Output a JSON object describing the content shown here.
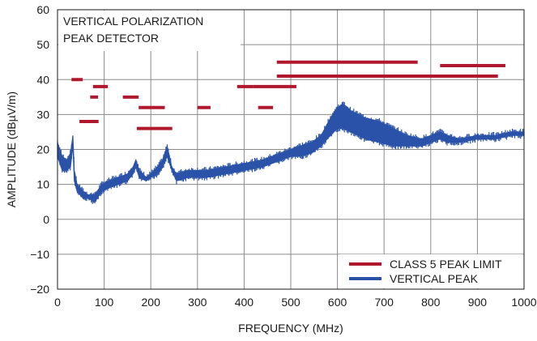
{
  "chart_data": {
    "type": "line",
    "title": "",
    "xlabel": "FREQUENCY (MHz)",
    "ylabel": "AMPLITUDE (dBµV/m)",
    "xlim": [
      0,
      1000
    ],
    "ylim": [
      -20,
      60
    ],
    "xticks": [
      0,
      100,
      200,
      300,
      400,
      500,
      600,
      700,
      800,
      900,
      1000
    ],
    "yticks": [
      -20,
      -10,
      0,
      10,
      20,
      30,
      40,
      50,
      60
    ],
    "grid": true,
    "annotation": [
      "VERTICAL POLARIZATION",
      "PEAK DETECTOR"
    ],
    "colors": {
      "limit": "#b0182e",
      "peak": "#2a52a8"
    },
    "legend": {
      "position": "bottom-right",
      "entries": [
        {
          "label": "CLASS 5 PEAK LIMIT",
          "color": "#b0182e"
        },
        {
          "label": "VERTICAL PEAK",
          "color": "#2a52a8"
        }
      ]
    },
    "series": [
      {
        "name": "CLASS 5 PEAK LIMIT",
        "style": "segments",
        "segments": [
          {
            "x": [
              30,
              54
            ],
            "y": 40
          },
          {
            "x": [
              47,
              88
            ],
            "y": 28
          },
          {
            "x": [
              70,
              87
            ],
            "y": 35
          },
          {
            "x": [
              76,
              108
            ],
            "y": 38
          },
          {
            "x": [
              140,
              174
            ],
            "y": 35
          },
          {
            "x": [
              174,
              230
            ],
            "y": 32
          },
          {
            "x": [
              170,
              246
            ],
            "y": 26
          },
          {
            "x": [
              300,
              328
            ],
            "y": 32
          },
          {
            "x": [
              385,
              420
            ],
            "y": 38
          },
          {
            "x": [
              420,
              512
            ],
            "y": 38
          },
          {
            "x": [
              430,
              462
            ],
            "y": 32
          },
          {
            "x": [
              470,
              772
            ],
            "y": 45
          },
          {
            "x": [
              470,
              944
            ],
            "y": 41
          },
          {
            "x": [
              820,
              960
            ],
            "y": 44
          }
        ]
      },
      {
        "name": "VERTICAL PEAK",
        "style": "band",
        "points": [
          [
            0,
            18,
            22
          ],
          [
            10,
            14,
            18
          ],
          [
            20,
            14,
            17
          ],
          [
            28,
            15,
            19
          ],
          [
            33,
            21,
            24
          ],
          [
            36,
            11,
            14
          ],
          [
            42,
            8,
            10
          ],
          [
            55,
            6,
            8
          ],
          [
            65,
            6,
            7
          ],
          [
            80,
            5,
            7
          ],
          [
            95,
            8,
            10
          ],
          [
            110,
            9,
            11
          ],
          [
            130,
            10,
            12
          ],
          [
            150,
            11,
            13
          ],
          [
            162,
            13,
            15
          ],
          [
            168,
            15,
            17
          ],
          [
            175,
            12,
            14
          ],
          [
            190,
            11,
            12
          ],
          [
            200,
            12,
            13
          ],
          [
            215,
            13,
            15
          ],
          [
            225,
            15,
            17
          ],
          [
            235,
            18,
            21
          ],
          [
            245,
            14,
            15
          ],
          [
            255,
            11,
            13
          ],
          [
            280,
            12,
            14
          ],
          [
            320,
            12,
            14
          ],
          [
            360,
            13,
            15
          ],
          [
            400,
            14,
            16
          ],
          [
            440,
            15,
            17
          ],
          [
            480,
            17,
            19
          ],
          [
            500,
            18,
            20
          ],
          [
            520,
            18,
            21
          ],
          [
            545,
            19,
            22
          ],
          [
            565,
            21,
            24
          ],
          [
            585,
            24,
            29
          ],
          [
            600,
            26,
            32
          ],
          [
            612,
            26,
            33
          ],
          [
            630,
            25,
            31
          ],
          [
            660,
            23,
            29
          ],
          [
            690,
            22,
            28
          ],
          [
            720,
            21,
            26
          ],
          [
            750,
            21,
            24
          ],
          [
            780,
            21,
            23
          ],
          [
            800,
            22,
            24
          ],
          [
            820,
            23,
            25
          ],
          [
            835,
            22,
            24
          ],
          [
            860,
            22,
            23
          ],
          [
            900,
            23,
            24
          ],
          [
            940,
            23,
            24
          ],
          [
            970,
            24,
            25
          ],
          [
            1000,
            24,
            25
          ]
        ]
      }
    ]
  }
}
